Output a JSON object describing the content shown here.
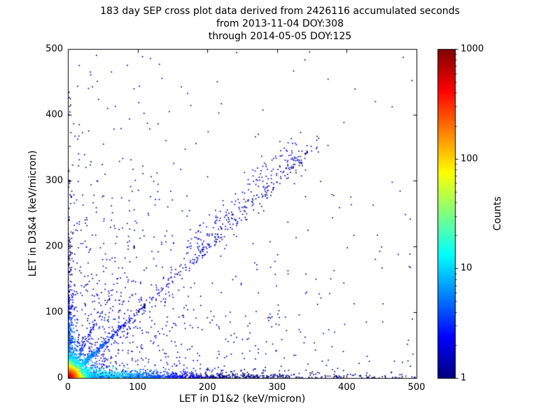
{
  "title": {
    "line1": "183 day SEP cross plot data derived from 2426116 accumulated seconds",
    "line2": "from 2013-11-04 DOY:308",
    "line3": "through 2014-05-05 DOY:125"
  },
  "chart_data": {
    "type": "scatter",
    "title": "183 day SEP cross plot data derived from 2426116 accumulated seconds",
    "subtitle1": "from 2013-11-04 DOY:308",
    "subtitle2": "through 2014-05-05 DOY:125",
    "xlabel": "LET in D1&2 (keV/micron)",
    "ylabel": "LET in D3&4 (keV/micron)",
    "xlim": [
      0,
      500
    ],
    "ylim": [
      0,
      500
    ],
    "xticks": [
      0,
      100,
      200,
      300,
      400,
      500
    ],
    "yticks": [
      0,
      100,
      200,
      300,
      400,
      500
    ],
    "grid": false,
    "legend": false,
    "colorbar": {
      "label": "Counts",
      "scale": "log",
      "range": [
        1,
        1000
      ],
      "ticks": [
        1,
        10,
        100,
        1000
      ],
      "colormap": "jet"
    },
    "content_summary": "Density scatter (counts colored on log jet scale). Hot red/orange core at origin within ~10 keV/micron, cyan-green band hugging the x-axis fading blue out to 500, blue band along the y-axis up to ~350, bright cyan proton diagonal y=x from origin to ~100 continuing as sparse blue speckle to ~360, a diffuse blue diagonal cloud near (180-330, 200-350), and sparse dark-blue background points concentrated toward the lower-left.",
    "clusters": [
      {
        "name": "background-scatter",
        "kind": "bg",
        "n": 900,
        "sx": 130,
        "sy": 130,
        "cbase": 1.5,
        "cfall": 100000
      },
      {
        "name": "sparse-uniform",
        "kind": "uniform",
        "n": 85,
        "cbase": 1.1,
        "cfall": 100000
      },
      {
        "name": "bottom-band",
        "kind": "band_x",
        "n": 1500,
        "len": 130,
        "thick": 3.5,
        "cbase": 25,
        "cfall": 70
      },
      {
        "name": "left-band",
        "kind": "band_y",
        "n": 520,
        "len": 85,
        "thick": 3.0,
        "cbase": 18,
        "cfall": 55
      },
      {
        "name": "diagonal-tail",
        "kind": "diag",
        "n": 260,
        "x0": 40,
        "x1": 360,
        "slope": 1.0,
        "off": 0,
        "sigma": 7,
        "cbase": 2.5,
        "cfall": 400
      },
      {
        "name": "diagonal-cloud",
        "kind": "diag",
        "n": 170,
        "x0": 170,
        "x1": 330,
        "slope": 1.0,
        "off": 18,
        "sigma": 16,
        "cbase": 1.8,
        "cfall": 100000
      },
      {
        "name": "steep-streak",
        "kind": "diagexp",
        "n": 110,
        "xm": 28,
        "xcap": 95,
        "slope": 2.1,
        "off": 0,
        "sigma": 3.5,
        "cbase": 6,
        "cfall": 35
      },
      {
        "name": "diagonal-main",
        "kind": "diagexp",
        "n": 470,
        "xm": 30,
        "xcap": 110,
        "slope": 1.0,
        "off": 0,
        "sigma": 1.8,
        "cbase": 16,
        "cfall": 38
      },
      {
        "name": "origin-halo",
        "kind": "bg",
        "n": 1300,
        "sx": 13,
        "sy": 13,
        "cbase": 70,
        "cfall": 16
      },
      {
        "name": "origin-core",
        "kind": "bg",
        "n": 2600,
        "sx": 4.5,
        "sy": 4.5,
        "cbase": 1000,
        "cfall": 7
      }
    ]
  },
  "colors": {
    "background": "#ffffff",
    "axes": "#000000",
    "text": "#000000",
    "count_low": "#000080",
    "count_high": "#800000"
  }
}
